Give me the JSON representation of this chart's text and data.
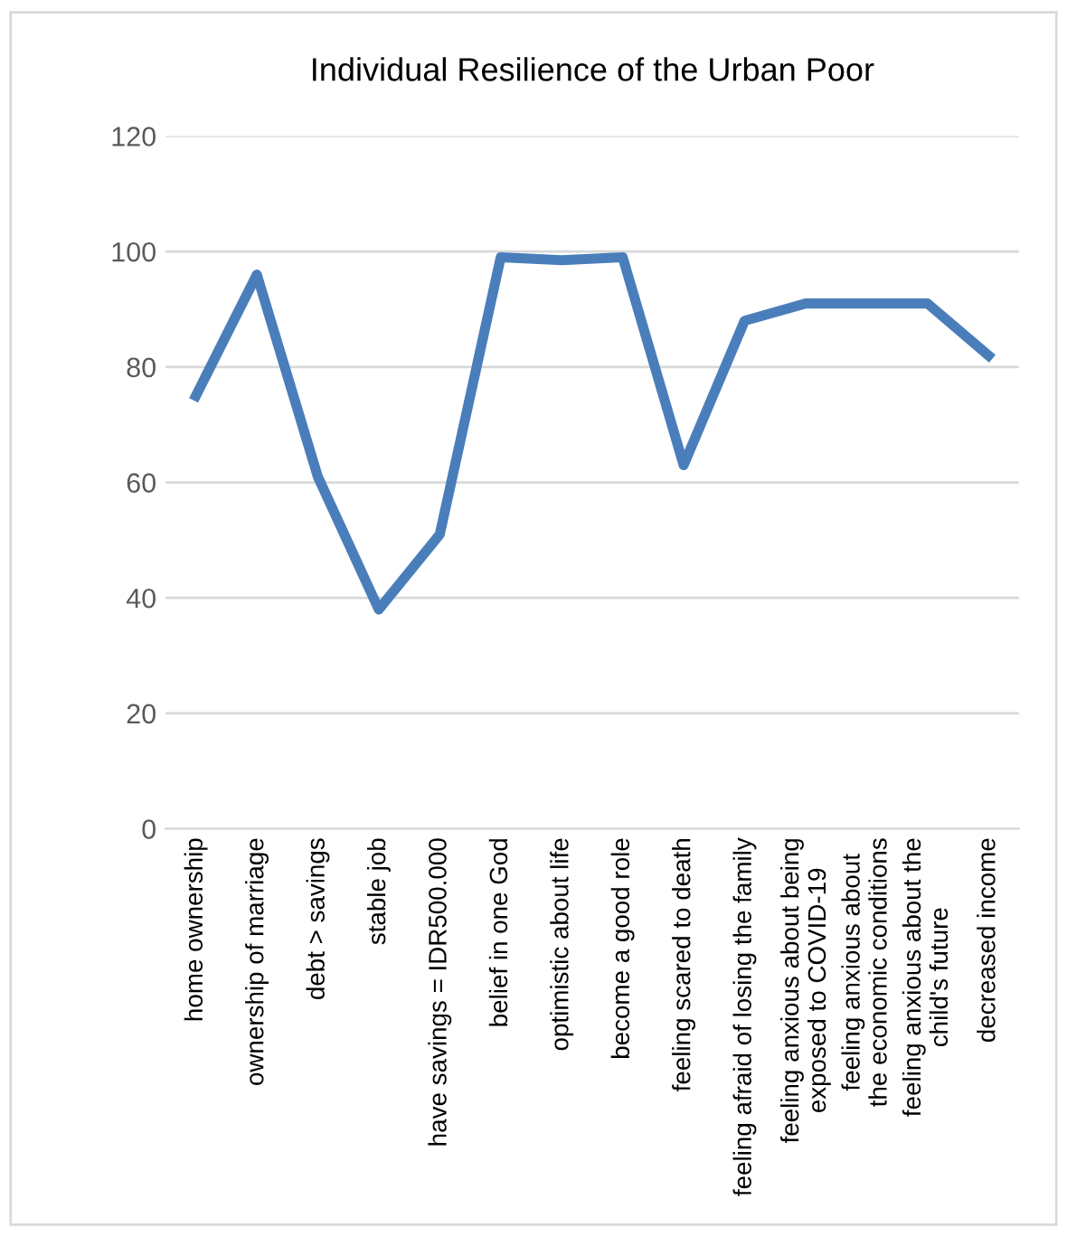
{
  "chart_data": {
    "type": "line",
    "title": "Individual Resilience of the Urban Poor",
    "categories": [
      "home ownership",
      "ownership of marriage",
      "debt > savings",
      "stable job",
      "have savings = IDR500.000",
      "belief in one God",
      "optimistic about life",
      "become a good role",
      "feeling scared to death",
      "feeling afraid of losing the family",
      "feeling anxious about being\nexposed to COVID-19",
      "feeling anxious about\nthe economic conditions",
      "feeling anxious about the\nchild's future",
      "decreased income"
    ],
    "series": [
      {
        "color": "#4a7ebb",
        "values": [
          75,
          96,
          61,
          38,
          51,
          99,
          98.5,
          99,
          63,
          88,
          91,
          91,
          91,
          82
        ]
      }
    ],
    "ylim": [
      0,
      120
    ],
    "yticks": [
      0,
      20,
      40,
      60,
      80,
      100,
      120
    ],
    "grid": "y",
    "marker": "none",
    "line_style": "solid"
  }
}
